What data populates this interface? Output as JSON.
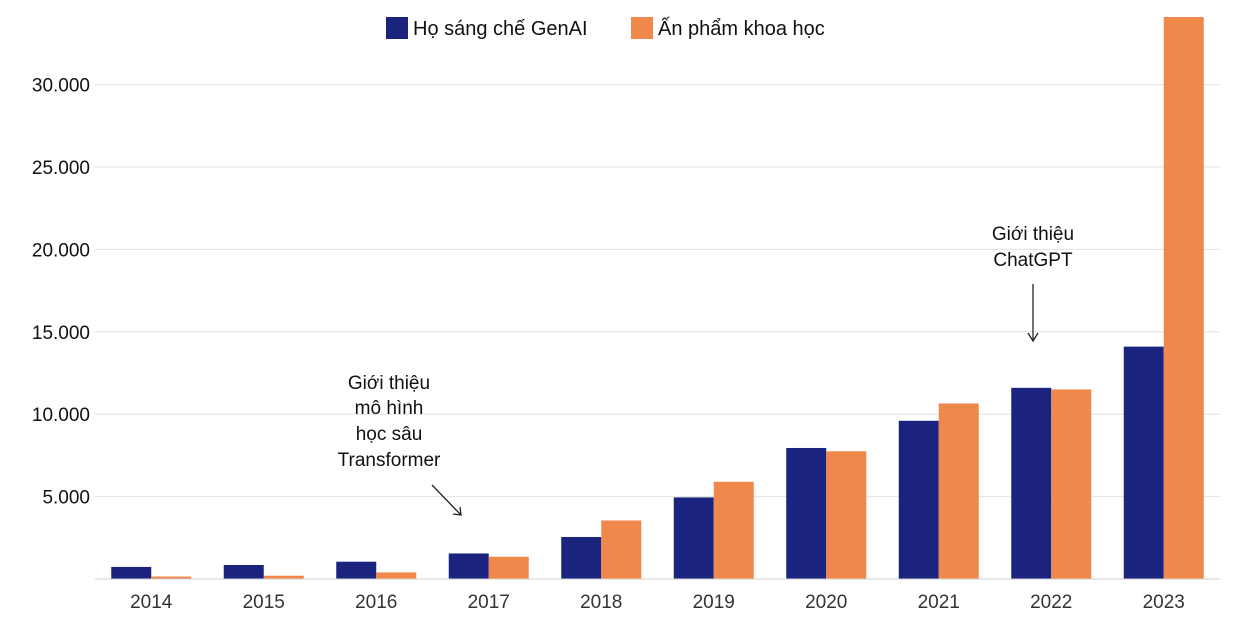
{
  "legend": {
    "series_1": "Họ sáng chế GenAI",
    "series_2": "Ấn phẩm khoa học"
  },
  "annotations": {
    "transformer": [
      "Giới thiệu",
      "mô hình",
      "học sâu",
      "Transformer"
    ],
    "chatgpt": [
      "Giới thiệu",
      "ChatGPT"
    ]
  },
  "colors": {
    "series_1": "#1a237e",
    "series_2": "#ef884a"
  },
  "chart_data": {
    "type": "bar",
    "categories": [
      "2014",
      "2015",
      "2016",
      "2017",
      "2018",
      "2019",
      "2020",
      "2021",
      "2022",
      "2023"
    ],
    "series": [
      {
        "name": "Họ sáng chế GenAI",
        "values": [
          733,
          850,
          1050,
          1550,
          2550,
          4950,
          7950,
          9600,
          11600,
          14100
        ]
      },
      {
        "name": "Ấn phẩm khoa học",
        "values": [
          150,
          200,
          400,
          1350,
          3550,
          5900,
          7750,
          10650,
          11500,
          34100
        ]
      }
    ],
    "y_ticks": [
      "5.000",
      "10.000",
      "15.000",
      "20.000",
      "25.000",
      "30.000"
    ],
    "y_tick_values": [
      5000,
      10000,
      15000,
      20000,
      25000,
      30000
    ],
    "ylim": [
      0,
      34100
    ],
    "grid": true,
    "legend_position": "top-center",
    "title": "",
    "xlabel": "",
    "ylabel": ""
  }
}
